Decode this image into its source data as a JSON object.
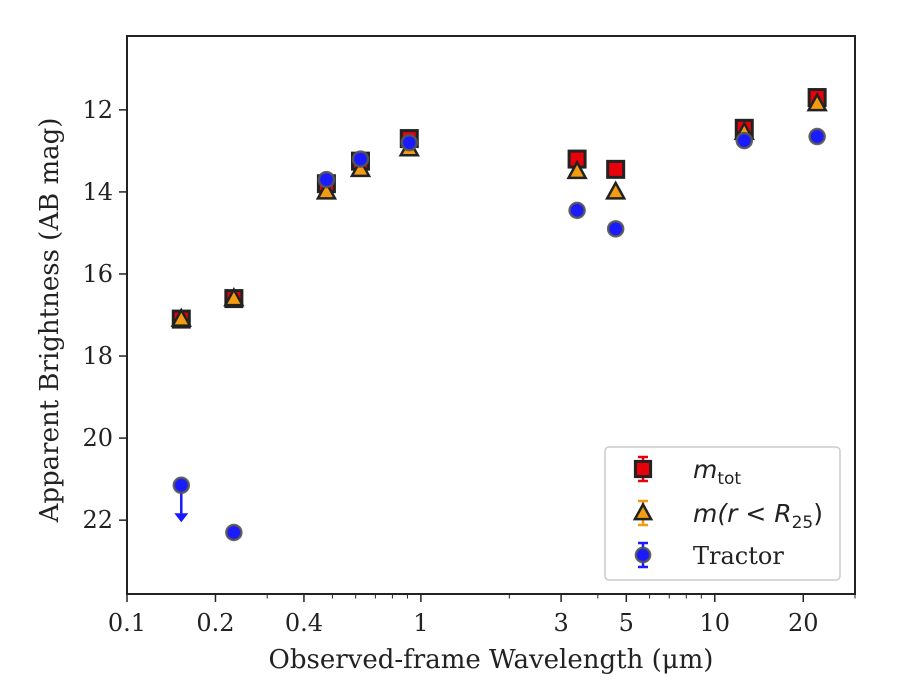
{
  "chart_data": {
    "type": "scatter",
    "xlabel": "Observed-frame Wavelength (μm)",
    "ylabel": "Apparent Brightness (AB mag)",
    "xscale": "log",
    "xlim": [
      0.1,
      30
    ],
    "ylim": [
      23.8,
      10.2
    ],
    "y_inverted": true,
    "xticks": [
      0.1,
      0.2,
      0.4,
      1,
      3,
      5,
      10,
      20
    ],
    "xtick_labels": [
      "0.1",
      "0.2",
      "0.4",
      "1",
      "3",
      "5",
      "10",
      "20"
    ],
    "yticks": [
      12,
      14,
      16,
      18,
      20,
      22
    ],
    "ytick_labels": [
      "12",
      "14",
      "16",
      "18",
      "20",
      "22"
    ],
    "grid": false,
    "legend_position": "lower-right",
    "series": [
      {
        "name_main": "m",
        "name_sub": "tot",
        "marker": "square",
        "color": "#e8000b",
        "points": [
          {
            "x": 0.153,
            "y": 17.1
          },
          {
            "x": 0.231,
            "y": 16.6
          },
          {
            "x": 0.477,
            "y": 13.8
          },
          {
            "x": 0.623,
            "y": 13.25
          },
          {
            "x": 0.913,
            "y": 12.7
          },
          {
            "x": 3.4,
            "y": 13.2
          },
          {
            "x": 4.6,
            "y": 13.45
          },
          {
            "x": 12.6,
            "y": 12.45
          },
          {
            "x": 22.3,
            "y": 11.7
          }
        ]
      },
      {
        "name_main": "m(r < R",
        "name_sub": "25",
        "name_end": ")",
        "marker": "triangle",
        "color": "#f39c12",
        "points": [
          {
            "x": 0.153,
            "y": 17.1
          },
          {
            "x": 0.231,
            "y": 16.6
          },
          {
            "x": 0.477,
            "y": 14.0
          },
          {
            "x": 0.623,
            "y": 13.45
          },
          {
            "x": 0.913,
            "y": 12.95
          },
          {
            "x": 3.4,
            "y": 13.5
          },
          {
            "x": 4.6,
            "y": 14.0
          },
          {
            "x": 12.6,
            "y": 12.55
          },
          {
            "x": 22.3,
            "y": 11.85
          }
        ]
      },
      {
        "name_main": "Tractor",
        "marker": "circle",
        "color": "#1a1aff",
        "points": [
          {
            "x": 0.153,
            "y": 21.15,
            "upper_limit": true
          },
          {
            "x": 0.231,
            "y": 22.3
          },
          {
            "x": 0.477,
            "y": 13.7
          },
          {
            "x": 0.623,
            "y": 13.2
          },
          {
            "x": 0.913,
            "y": 12.8
          },
          {
            "x": 3.4,
            "y": 14.45
          },
          {
            "x": 4.6,
            "y": 14.9
          },
          {
            "x": 12.6,
            "y": 12.75
          },
          {
            "x": 22.3,
            "y": 12.65
          }
        ]
      }
    ]
  }
}
